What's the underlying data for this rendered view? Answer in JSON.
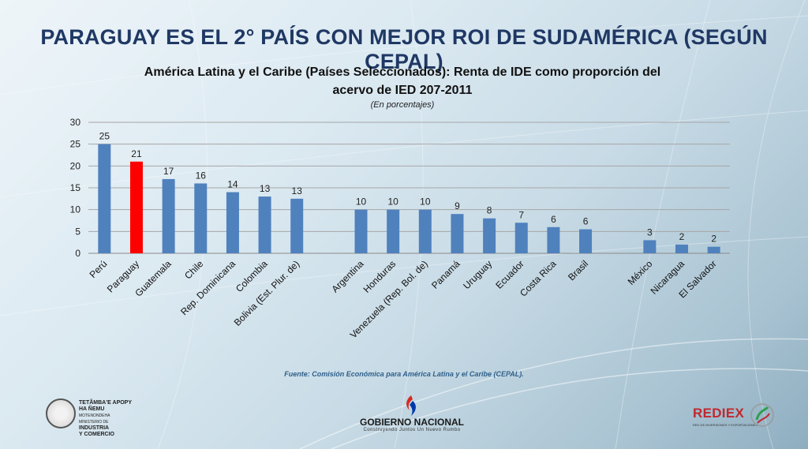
{
  "slide": {
    "title": "PARAGUAY ES EL 2° PAÍS CON MEJOR ROI DE SUDAMÉRICA (SEGÚN CEPAL)",
    "source": "Fuente: Comisión Económica para América Latina y el Caribe (CEPAL)."
  },
  "logos": {
    "left_line1": "TETÃMBAʼE APOPY",
    "left_line2": "HA ÑEMU",
    "left_line3": "MOTENONDEHA",
    "left_line4": "MINISTERIO DE",
    "left_line5": "INDUSTRIA",
    "left_line6": "Y COMERCIO",
    "center_name": "GOBIERNO NACIONAL",
    "center_tagline": "Construyendo Juntos Un Nuevo Rumbo",
    "right_name": "REDIEX",
    "right_tagline": "RED DE INVERSIONES Y EXPORTACIONES"
  },
  "colors": {
    "bar": "#4f81bd",
    "highlight": "#ff0000",
    "title": "#1f3864"
  },
  "chart_data": {
    "type": "bar",
    "title_line1": "América Latina y el Caribe (Países Seleccionados): Renta de IDE como proporción del",
    "title_line2": "acervo de IED 207-2011",
    "subtitle": "(En porcentajes)",
    "categories": [
      "Perú",
      "Paraguay",
      "Guatemala",
      "Chile",
      "Rep. Dominicana",
      "Colombia",
      "Bolivia (Est. Plur. de)",
      "",
      "Argentina",
      "Honduras",
      "Venezuela (Rep. Bol. de)",
      "Panamá",
      "Uruguay",
      "Ecuador",
      "Costa Rica",
      "Brasil",
      "",
      "México",
      "Nicaragua",
      "El Salvador"
    ],
    "values": [
      25,
      21,
      17,
      16,
      14,
      13,
      12.5,
      null,
      10,
      10,
      10,
      9,
      8,
      7,
      6,
      5.5,
      null,
      3,
      2,
      1.5
    ],
    "labels": [
      "25",
      "21",
      "17",
      "16",
      "14",
      "13",
      "13",
      "",
      "10",
      "10",
      "10",
      "9",
      "8",
      "7",
      "6",
      "6",
      "",
      "3",
      "2",
      "2"
    ],
    "highlight_index": 1,
    "ylim": [
      0,
      30
    ],
    "yticks": [
      0,
      5,
      10,
      15,
      20,
      25,
      30
    ],
    "grid": true,
    "legend": "none"
  }
}
